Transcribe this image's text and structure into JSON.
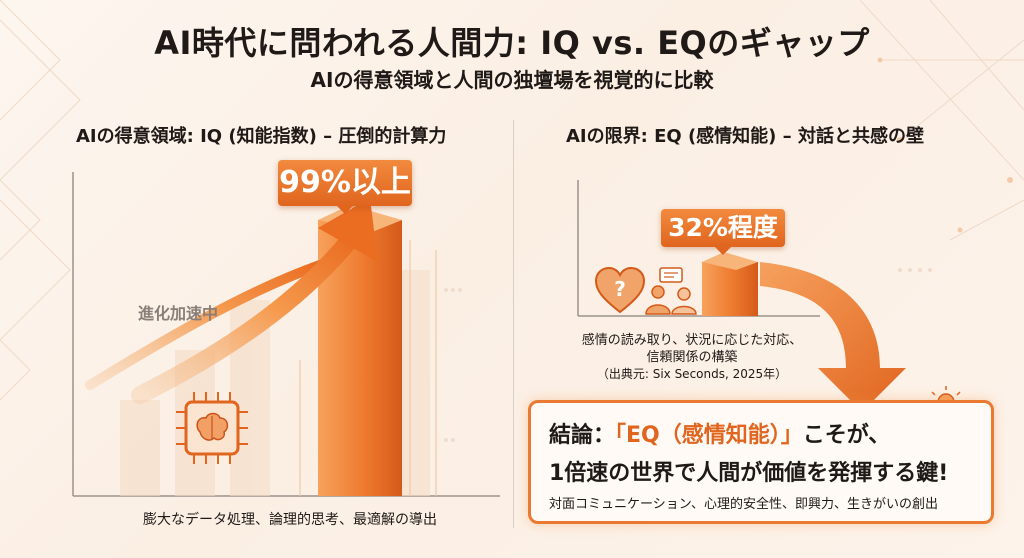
{
  "header": {
    "title": "AI時代に問われる人間力: IQ vs. EQのギャップ",
    "subtitle": "AIの得意領域と人間の独壇場を視覚的に比較"
  },
  "left_panel": {
    "heading": "AIの得意領域: IQ (知能指数) – 圧倒的計算力",
    "callout": "99%以上",
    "trend_label": "進化加速中",
    "caption": "膨大なデータ処理、論理的思考、最適解の導出",
    "icon": "brain-chip-icon"
  },
  "right_panel": {
    "heading": "AIの限界: EQ (感情知能) – 対話と共感の壁",
    "callout": "32%程度",
    "caption_line1": "感情の読み取り、状況に応じた対応、",
    "caption_line2": "信頼関係の構築",
    "source": "（出典元: Six Seconds, 2025年）",
    "icons": [
      "heart-question-icon",
      "people-chat-icon",
      "handshake-lightbulb-icon"
    ]
  },
  "conclusion": {
    "prefix": "結論：",
    "highlight": "「EQ（感情知能）」",
    "suffix": "こそが、",
    "line2": "1倍速の世界で人間が価値を発揮する鍵!",
    "line3": "対面コミュニケーション、心理的安全性、即興力、生きがいの創出"
  },
  "colors": {
    "accent": "#e0651f",
    "accent_light": "#f6a15e",
    "text": "#1f1a17"
  }
}
